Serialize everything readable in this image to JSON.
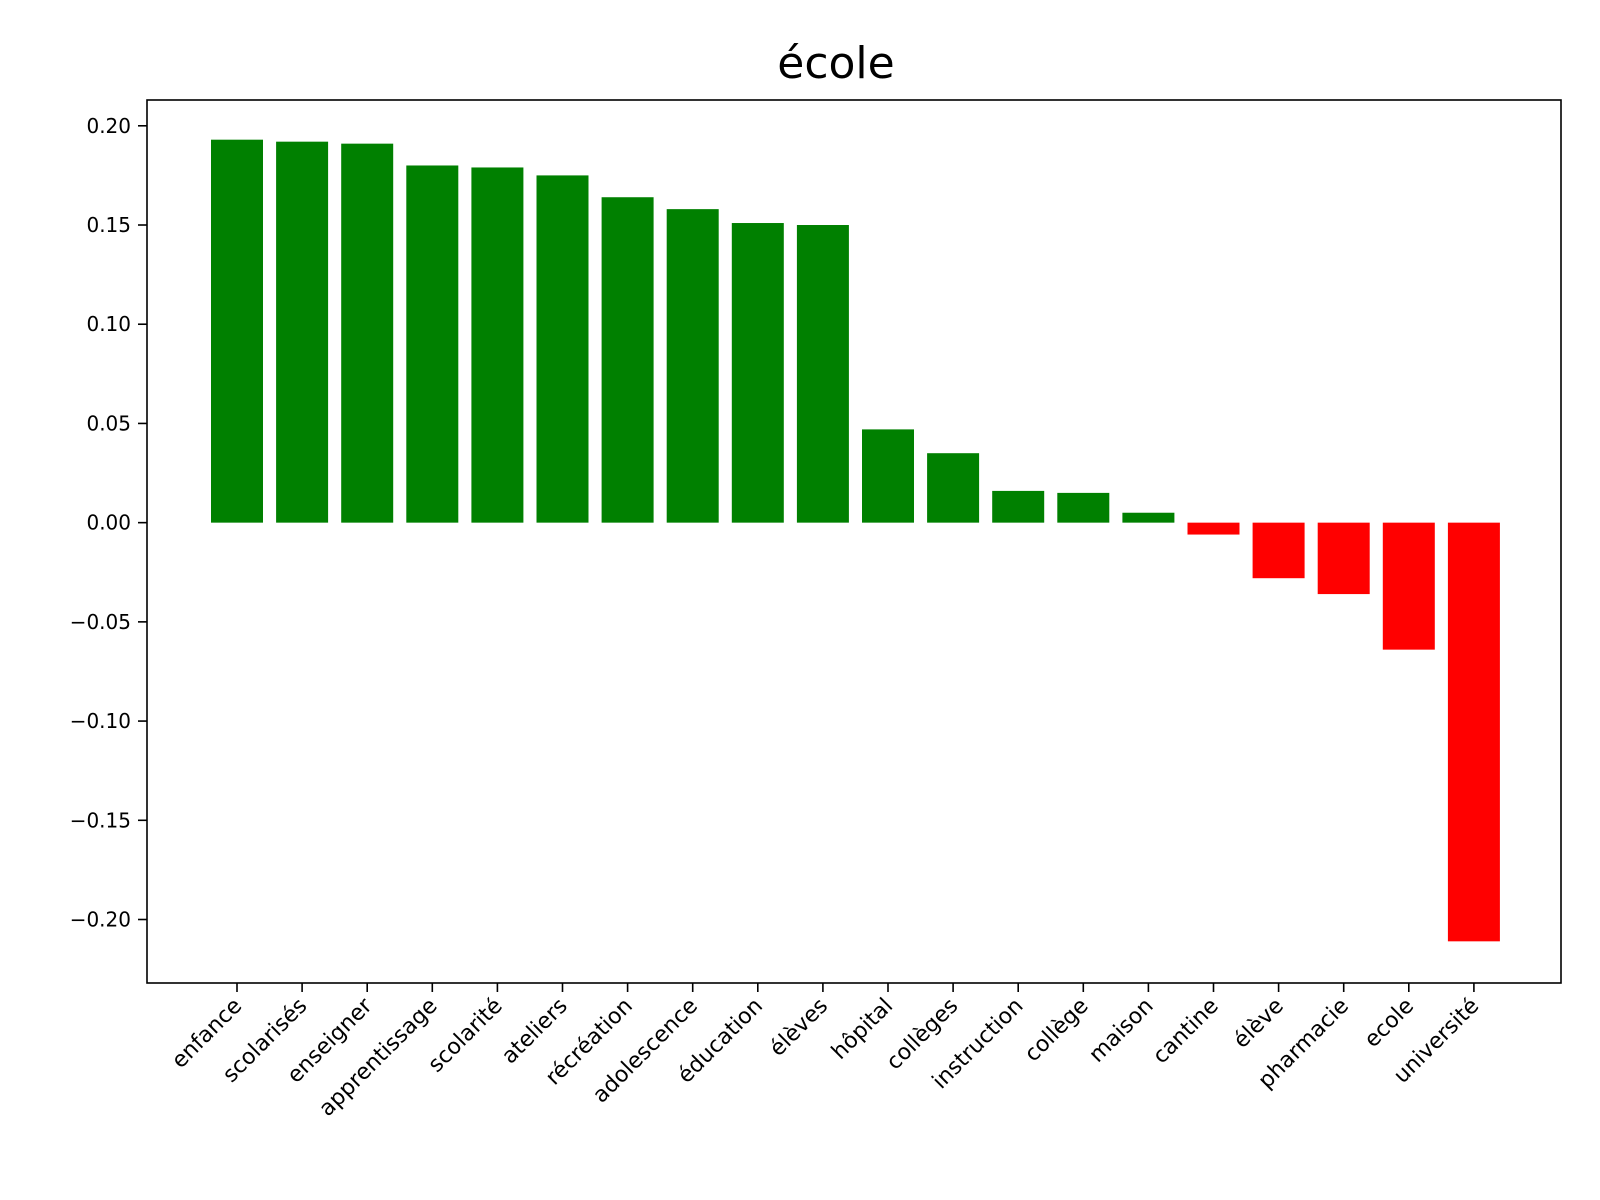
{
  "chart_data": {
    "type": "bar",
    "title": "école",
    "xlabel": "",
    "ylabel": "",
    "ylim": [
      -0.232,
      0.213
    ],
    "yticks": [
      0.2,
      0.15,
      0.1,
      0.05,
      0.0,
      -0.05,
      -0.1,
      -0.15,
      -0.2
    ],
    "ytick_labels": [
      "0.20",
      "0.15",
      "0.10",
      "0.05",
      "0.00",
      "−0.05",
      "−0.10",
      "−0.15",
      "−0.20"
    ],
    "categories": [
      "enfance",
      "scolarisés",
      "enseigner",
      "apprentissage",
      "scolarité",
      "ateliers",
      "récréation",
      "adolescence",
      "éducation",
      "élèves",
      "hôpital",
      "collèges",
      "instruction",
      "collège",
      "maison",
      "cantine",
      "élève",
      "pharmacie",
      "ecole",
      "université"
    ],
    "values": [
      0.193,
      0.192,
      0.191,
      0.18,
      0.179,
      0.175,
      0.164,
      0.158,
      0.151,
      0.15,
      0.047,
      0.035,
      0.016,
      0.015,
      0.005,
      -0.006,
      -0.028,
      -0.036,
      -0.064,
      -0.211
    ],
    "colors": {
      "positive": "#008000",
      "negative": "#ff0000"
    },
    "grid": false,
    "legend": "none"
  }
}
